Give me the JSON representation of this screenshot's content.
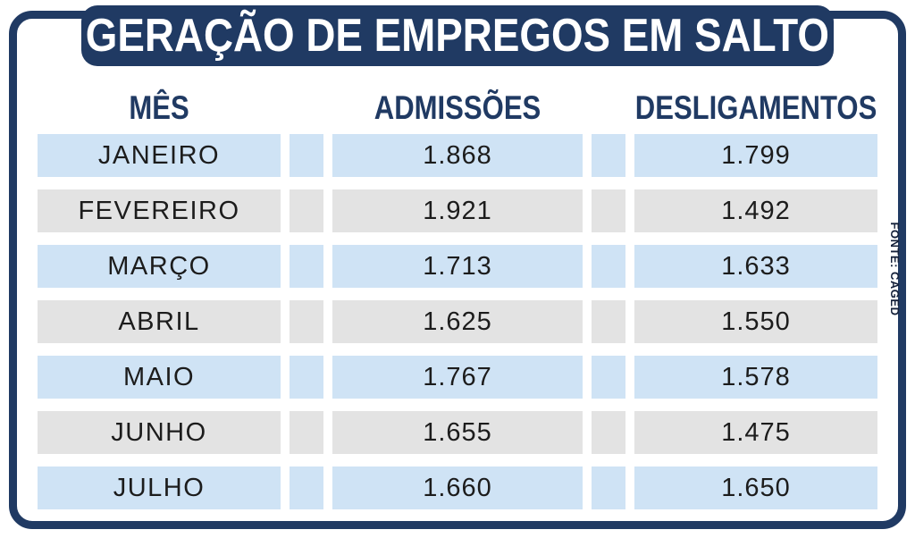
{
  "title": "GERAÇÃO DE EMPREGOS EM SALTO",
  "source": "FONTE: CAGED",
  "columns": [
    "MÊS",
    "ADMISSÕES",
    "DESLIGAMENTOS"
  ],
  "rows": [
    {
      "month": "JANEIRO",
      "admissions": "1.868",
      "dismissals": "1.799"
    },
    {
      "month": "FEVEREIRO",
      "admissions": "1.921",
      "dismissals": "1.492"
    },
    {
      "month": "MARÇO",
      "admissions": "1.713",
      "dismissals": "1.633"
    },
    {
      "month": "ABRIL",
      "admissions": "1.625",
      "dismissals": "1.550"
    },
    {
      "month": "MAIO",
      "admissions": "1.767",
      "dismissals": "1.578"
    },
    {
      "month": "JUNHO",
      "admissions": "1.655",
      "dismissals": "1.475"
    },
    {
      "month": "JULHO",
      "admissions": "1.660",
      "dismissals": "1.650"
    }
  ],
  "colors": {
    "navy": "#203a63",
    "row_blue": "#cfe3f5",
    "row_gray": "#e3e3e3",
    "text_dark": "#1c1c1c"
  },
  "chart_data": {
    "type": "table",
    "title": "GERAÇÃO DE EMPREGOS EM SALTO",
    "categories": [
      "JANEIRO",
      "FEVEREIRO",
      "MARÇO",
      "ABRIL",
      "MAIO",
      "JUNHO",
      "JULHO"
    ],
    "series": [
      {
        "name": "ADMISSÕES",
        "values": [
          1868,
          1921,
          1713,
          1625,
          1767,
          1655,
          1660
        ]
      },
      {
        "name": "DESLIGAMENTOS",
        "values": [
          1799,
          1492,
          1633,
          1550,
          1578,
          1475,
          1650
        ]
      }
    ],
    "source": "FONTE: CAGED",
    "legend_position": "none",
    "grid": false
  }
}
